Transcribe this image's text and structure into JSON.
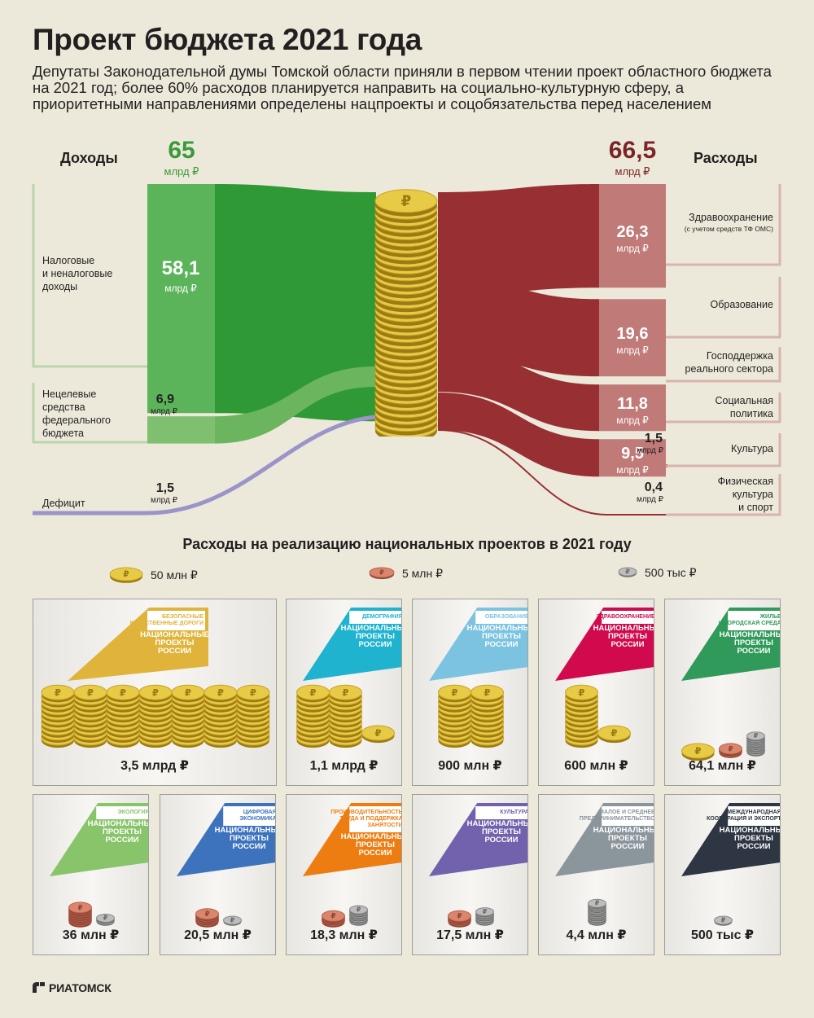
{
  "header": {
    "title": "Проект бюджета 2021 года",
    "subtitle": "Депутаты Законодательной думы Томской области приняли в первом чтении проект областного бюджета на 2021 год; более 60% расходов планируется направить на социально-культурную сферу, а приоритетными направлениями определены нацпроекты и соцобязательства перед населением"
  },
  "colors": {
    "income": "#3a9a3a",
    "income_light": "#6cb55f",
    "expense": "#972f33",
    "expense_light": "#c07a78",
    "deficit": "#9a94c8",
    "gold": "#d4b22c",
    "copper": "#c9735a",
    "silver": "#9a9a9a"
  },
  "budget": {
    "income_title": "Доходы",
    "expense_title": "Расходы",
    "income_total": "65",
    "income_total_unit": "млрд ₽",
    "expense_total": "66,5",
    "expense_total_unit": "млрд ₽",
    "unit_short": "млрд ₽",
    "icon": "ruble-coin-stack-icon"
  },
  "chart_data": [
    {
      "type": "sankey",
      "unit": "млрд ₽",
      "income": {
        "label": "Доходы",
        "total": 65,
        "categories": [
          "Налоговые и неналоговые доходы",
          "Нецелевые средства федерального бюджета",
          "Дефицит"
        ],
        "values": [
          58.1,
          6.9,
          1.5
        ],
        "value_labels": [
          "58,1",
          "6,9",
          "1,5"
        ]
      },
      "expenses": {
        "label": "Расходы",
        "total": 66.5,
        "categories": [
          "Здравоохранение (с учетом средств ТФ ОМС)",
          "Образование",
          "Господдержка реального сектора",
          "Социальная политика",
          "Культура",
          "Физическая культура и спорт"
        ],
        "values": [
          26.3,
          19.6,
          11.8,
          9.5,
          1.5,
          0.4
        ],
        "value_labels": [
          "26,3",
          "19,6",
          "11,8",
          "9,5",
          "1,5",
          "0,4"
        ]
      }
    },
    {
      "type": "pictograph",
      "title": "Расходы на реализацию национальных проектов в 2021 году",
      "legend": [
        {
          "coin": "gold",
          "label": "50 млн ₽"
        },
        {
          "coin": "copper",
          "label": "5 млн ₽"
        },
        {
          "coin": "silver",
          "label": "500 тыс ₽"
        }
      ],
      "categories": [
        "Безопасные качественные дороги",
        "Демография",
        "Образование",
        "Здравоохранение",
        "Жилье и городская среда",
        "Экология",
        "Цифровая экономика",
        "Производительность труда и поддержка занятости",
        "Культура",
        "Малое и среднее предпринимательство",
        "Международная кооперация и экспорт"
      ],
      "values_rub": [
        3500000000,
        1100000000,
        900000000,
        600000000,
        64100000,
        36000000,
        20500000,
        18300000,
        17500000,
        4400000,
        500000
      ],
      "value_labels": [
        "3,5 млрд ₽",
        "1,1 млрд ₽",
        "900 млн ₽",
        "600 млн ₽",
        "64,1 млн ₽",
        "36 млн ₽",
        "20,5 млн ₽",
        "18,3 млн ₽",
        "17,5 млн ₽",
        "4,4 млн ₽",
        "500 тыс ₽"
      ]
    }
  ],
  "income_items": [
    {
      "label_lines": [
        "Налоговые",
        "и неналоговые",
        "доходы"
      ]
    },
    {
      "label_lines": [
        "Нецелевые",
        "средства",
        "федерального",
        "бюджета"
      ]
    },
    {
      "label_lines": [
        "Дефицит"
      ]
    }
  ],
  "expense_items": [
    {
      "label_lines": [
        "Здравоохранение"
      ],
      "note": "(с учетом средств ТФ ОМС)"
    },
    {
      "label_lines": [
        "Образование"
      ]
    },
    {
      "label_lines": [
        "Господдержка",
        "реального сектора"
      ]
    },
    {
      "label_lines": [
        "Социальная",
        "политика"
      ]
    },
    {
      "label_lines": [
        "Культура"
      ]
    },
    {
      "label_lines": [
        "Физическая",
        "культура",
        "и спорт"
      ]
    }
  ],
  "projects_section": {
    "brand_lines": [
      "НАЦИОНАЛЬНЫЕ",
      "ПРОЕКТЫ",
      "РОССИИ"
    ],
    "cards": [
      {
        "name_lines": [
          "БЕЗОПАСНЫЕ",
          "КАЧЕСТВЕННЫЕ ДОРОГИ"
        ],
        "color": "#e0b43a",
        "coins": {
          "gold_stacks": 7,
          "gold_single": 0,
          "copper": 0,
          "silver": 0
        }
      },
      {
        "name_lines": [
          "ДЕМОГРАФИЯ"
        ],
        "color": "#1fb3cf",
        "coins": {
          "gold_stacks": 2,
          "gold_single": 1,
          "copper": 0,
          "silver": 0
        }
      },
      {
        "name_lines": [
          "ОБРАЗОВАНИЕ"
        ],
        "color": "#7cc3e2",
        "coins": {
          "gold_stacks": 2,
          "gold_single": 0,
          "copper": 0,
          "silver": 0
        }
      },
      {
        "name_lines": [
          "ЗДРАВООХРАНЕНИЕ"
        ],
        "color": "#d10a4d",
        "coins": {
          "gold_stacks": 1,
          "gold_single": 1,
          "copper": 0,
          "silver": 0
        }
      },
      {
        "name_lines": [
          "ЖИЛЬЕ",
          "И ГОРОДСКАЯ СРЕДА"
        ],
        "color": "#2f9a5a",
        "coins": {
          "gold_stacks": 0,
          "gold_single": 1,
          "copper": 2,
          "silver": 8
        }
      },
      {
        "name_lines": [
          "ЭКОЛОГИЯ"
        ],
        "color": "#88c46a",
        "coins": {
          "gold_stacks": 0,
          "gold_single": 0,
          "copper": 7,
          "silver": 2
        }
      },
      {
        "name_lines": [
          "ЦИФРОВАЯ",
          "ЭКОНОМИКА"
        ],
        "color": "#3d73bd",
        "coins": {
          "gold_stacks": 0,
          "gold_single": 0,
          "copper": 4,
          "silver": 1
        }
      },
      {
        "name_lines": [
          "ПРОИЗВОДИТЕЛЬНОСТЬ",
          "ТРУДА И ПОДДЕРЖКА",
          "ЗАНЯТОСТИ"
        ],
        "color": "#ee7d11",
        "coins": {
          "gold_stacks": 0,
          "gold_single": 0,
          "copper": 3,
          "silver": 6
        }
      },
      {
        "name_lines": [
          "КУЛЬТУРА"
        ],
        "color": "#7261ad",
        "coins": {
          "gold_stacks": 0,
          "gold_single": 0,
          "copper": 3,
          "silver": 5
        }
      },
      {
        "name_lines": [
          "МАЛОЕ И СРЕДНЕЕ",
          "ПРЕДПРИНИМАТЕЛЬСТВО"
        ],
        "color": "#8b959c",
        "coins": {
          "gold_stacks": 0,
          "gold_single": 0,
          "copper": 0,
          "silver": 9
        }
      },
      {
        "name_lines": [
          "МЕЖДУНАРОДНАЯ",
          "КООПЕРАЦИЯ И ЭКСПОРТ"
        ],
        "color": "#2d3642",
        "coins": {
          "gold_stacks": 0,
          "gold_single": 0,
          "copper": 0,
          "silver": 1
        }
      }
    ]
  },
  "footer": {
    "brand": "РИАТОМСК",
    "icon": "ria-tomsk-logo-icon"
  }
}
